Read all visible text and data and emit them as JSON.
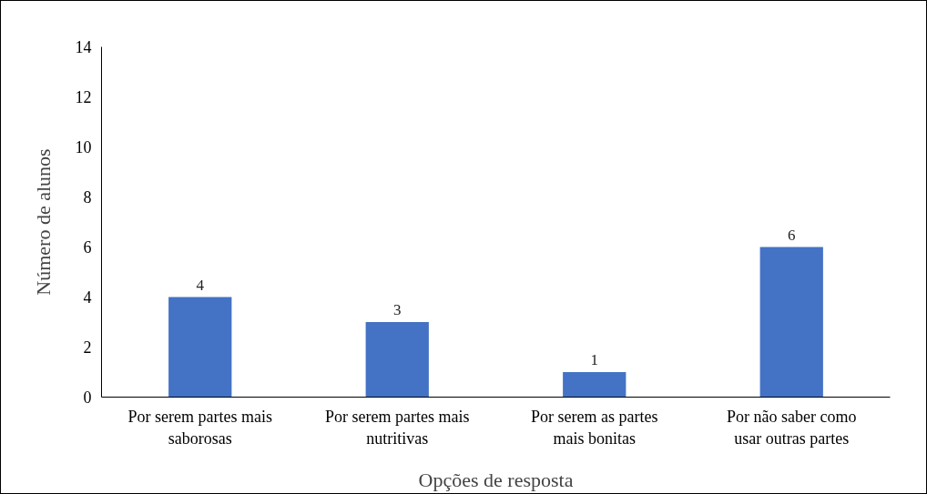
{
  "chart_data": {
    "type": "bar",
    "xlabel": "Opções de resposta",
    "ylabel": "Número de alunos",
    "categories": [
      "Por serem partes mais saborosas",
      "Por serem partes mais nutritivas",
      "Por serem as partes mais bonitas",
      "Por não saber como usar outras partes"
    ],
    "values": [
      4,
      3,
      1,
      6
    ],
    "color": "#4472c4",
    "ylim": [
      0,
      14
    ],
    "yticks": [
      0,
      2,
      4,
      6,
      8,
      10,
      12,
      14
    ],
    "grid": false,
    "data_labels": true
  }
}
